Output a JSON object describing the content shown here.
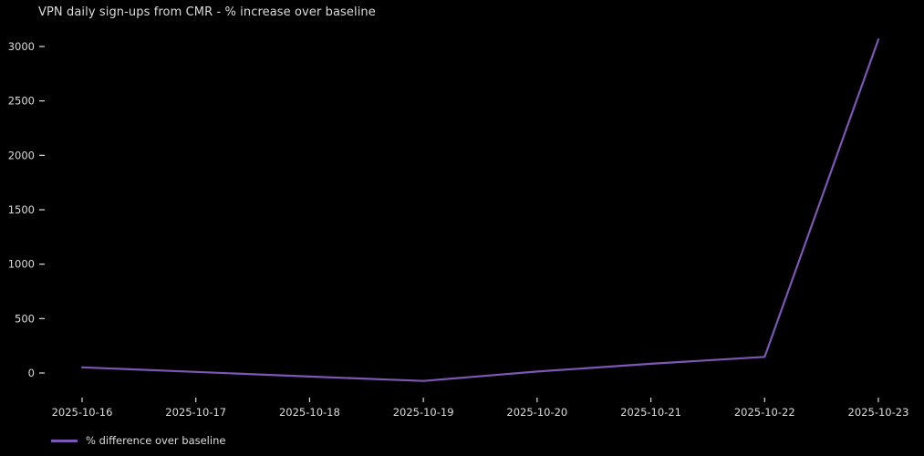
{
  "chart_data": {
    "type": "line",
    "title": "VPN daily sign-ups from CMR - % increase over baseline",
    "x": [
      "2025-10-16",
      "2025-10-17",
      "2025-10-18",
      "2025-10-19",
      "2025-10-20",
      "2025-10-21",
      "2025-10-22",
      "2025-10-23"
    ],
    "series": [
      {
        "name": "% difference over baseline",
        "values": [
          52,
          10,
          -33,
          -73,
          13,
          85,
          148,
          3065
        ]
      }
    ],
    "xlabel": "",
    "ylabel": "",
    "y_ticks": [
      0,
      500,
      1000,
      1500,
      2000,
      2500,
      3000
    ],
    "ylim": [
      -140,
      3150
    ],
    "grid": false,
    "legend_position": "lower-left-outside",
    "colors": {
      "line": "#7e57b6",
      "text": "#dcdcdc",
      "background": "#000000"
    }
  },
  "legend": {
    "label": "% difference over baseline"
  }
}
